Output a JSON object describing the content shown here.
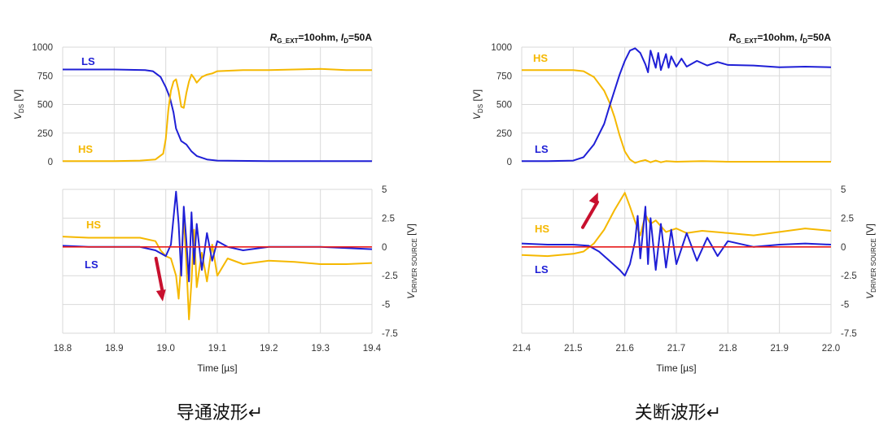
{
  "chart_data": [
    {
      "type": "line",
      "caption": "导通波形↵",
      "condition": {
        "r": "R",
        "r_sub": "G_EXT",
        "r_val": "=10ohm, ",
        "i": "I",
        "i_sub": "D",
        "i_val": "=50A"
      },
      "xlabel": "Time [µs]",
      "x_ticks": [
        "18.8",
        "18.9",
        "19.0",
        "19.1",
        "19.2",
        "19.3",
        "19.4"
      ],
      "xlim": [
        18.8,
        19.4
      ],
      "top": {
        "ylabel_main": "V",
        "ylabel_sub": "DS",
        "ylabel_unit": " [V]",
        "ylim": [
          0,
          1000
        ],
        "y_ticks": [
          "0",
          "250",
          "500",
          "750",
          "1000"
        ],
        "series": [
          {
            "name": "LS",
            "color": "#1f1fd6",
            "x": [
              18.8,
              18.85,
              18.9,
              18.96,
              18.975,
              18.99,
              19.0,
              19.008,
              19.015,
              19.02,
              19.03,
              19.04,
              19.05,
              19.06,
              19.08,
              19.1,
              19.2,
              19.3,
              19.4
            ],
            "y": [
              805,
              805,
              805,
              800,
              790,
              740,
              650,
              560,
              430,
              290,
              180,
              150,
              90,
              50,
              20,
              10,
              5,
              5,
              5
            ]
          },
          {
            "name": "HS",
            "color": "#f5b800",
            "x": [
              18.8,
              18.85,
              18.9,
              18.95,
              18.98,
              18.995,
              19.0,
              19.005,
              19.01,
              19.015,
              19.02,
              19.025,
              19.03,
              19.035,
              19.04,
              19.045,
              19.05,
              19.055,
              19.06,
              19.07,
              19.08,
              19.09,
              19.1,
              19.15,
              19.2,
              19.25,
              19.3,
              19.35,
              19.4
            ],
            "y": [
              5,
              5,
              5,
              10,
              20,
              70,
              200,
              450,
              620,
              700,
              720,
              620,
              480,
              470,
              600,
              700,
              760,
              730,
              690,
              740,
              760,
              770,
              790,
              800,
              800,
              805,
              810,
              800,
              800
            ]
          }
        ]
      },
      "bottom": {
        "ylabel_main": "V",
        "ylabel_sub": "DRIVER SOURCE",
        "ylabel_unit": " [V]",
        "ylim": [
          -7.5,
          5
        ],
        "y_ticks": [
          "5",
          "2.5",
          "0",
          "-2.5",
          "-5",
          "-7.5"
        ],
        "series": [
          {
            "name": "HS",
            "color": "#f5b800",
            "x": [
              18.8,
              18.85,
              18.9,
              18.95,
              18.98,
              18.99,
              19.0,
              19.01,
              19.02,
              19.025,
              19.03,
              19.035,
              19.04,
              19.045,
              19.05,
              19.055,
              19.06,
              19.07,
              19.08,
              19.09,
              19.1,
              19.12,
              19.15,
              19.2,
              19.25,
              19.3,
              19.35,
              19.4
            ],
            "y": [
              0.9,
              0.8,
              0.8,
              0.8,
              0.5,
              -0.3,
              -0.8,
              -1.0,
              -2.5,
              -4.5,
              -1.2,
              2.5,
              -1.5,
              -6.3,
              -3.0,
              1.5,
              -3.5,
              -0.5,
              -3.0,
              0.2,
              -2.5,
              -1.0,
              -1.5,
              -1.2,
              -1.3,
              -1.5,
              -1.5,
              -1.4
            ]
          },
          {
            "name": "LS",
            "color": "#1f1fd6",
            "x": [
              18.8,
              18.85,
              18.9,
              18.95,
              18.98,
              19.0,
              19.01,
              19.02,
              19.025,
              19.03,
              19.035,
              19.04,
              19.045,
              19.05,
              19.055,
              19.06,
              19.07,
              19.08,
              19.09,
              19.1,
              19.12,
              19.15,
              19.2,
              19.3,
              19.4
            ],
            "y": [
              0.1,
              0.0,
              0.0,
              0.0,
              -0.3,
              -0.8,
              0.2,
              4.8,
              2.0,
              -2.5,
              3.5,
              0.5,
              -3.0,
              3.0,
              -1.5,
              2.0,
              -2.0,
              1.2,
              -1.2,
              0.5,
              0.0,
              -0.3,
              0.0,
              0.0,
              -0.2
            ]
          },
          {
            "name": "",
            "color": "#e81b1b",
            "x": [
              18.8,
              19.4
            ],
            "y": [
              0,
              0
            ]
          }
        ]
      },
      "arrow": {
        "direction": "down",
        "x": 19.0,
        "y_from": -1.0,
        "y_to": -4.6
      }
    },
    {
      "type": "line",
      "caption": "关断波形↵",
      "condition": {
        "r": "R",
        "r_sub": "G_EXT",
        "r_val": "=10ohm, ",
        "i": "I",
        "i_sub": "D",
        "i_val": "=50A"
      },
      "xlabel": "Time [µs]",
      "x_ticks": [
        "21.4",
        "21.5",
        "21.6",
        "21.7",
        "21.8",
        "21.9",
        "22.0"
      ],
      "xlim": [
        21.4,
        22.0
      ],
      "top": {
        "ylabel_main": "V",
        "ylabel_sub": "DS",
        "ylabel_unit": " [V]",
        "ylim": [
          0,
          1000
        ],
        "y_ticks": [
          "0",
          "250",
          "500",
          "750",
          "1000"
        ],
        "series": [
          {
            "name": "HS",
            "color": "#f5b800",
            "x": [
              21.4,
              21.45,
              21.5,
              21.52,
              21.54,
              21.56,
              21.57,
              21.58,
              21.59,
              21.6,
              21.61,
              21.62,
              21.63,
              21.64,
              21.65,
              21.66,
              21.67,
              21.68,
              21.7,
              21.75,
              21.8,
              21.9,
              22.0
            ],
            "y": [
              800,
              800,
              800,
              790,
              740,
              620,
              520,
              390,
              230,
              90,
              20,
              -10,
              5,
              15,
              -5,
              10,
              -5,
              5,
              0,
              5,
              0,
              0,
              0
            ]
          },
          {
            "name": "LS",
            "color": "#1f1fd6",
            "x": [
              21.4,
              21.45,
              21.5,
              21.52,
              21.54,
              21.56,
              21.57,
              21.58,
              21.59,
              21.6,
              21.61,
              21.62,
              21.63,
              21.64,
              21.645,
              21.65,
              21.66,
              21.665,
              21.67,
              21.68,
              21.685,
              21.69,
              21.7,
              21.71,
              21.72,
              21.74,
              21.76,
              21.78,
              21.8,
              21.85,
              21.9,
              21.95,
              22.0
            ],
            "y": [
              5,
              5,
              10,
              40,
              150,
              330,
              480,
              620,
              760,
              880,
              970,
              990,
              950,
              850,
              780,
              970,
              820,
              950,
              800,
              940,
              820,
              920,
              830,
              900,
              830,
              880,
              840,
              870,
              845,
              840,
              825,
              830,
              825
            ]
          }
        ]
      },
      "bottom": {
        "ylabel_main": "V",
        "ylabel_sub": "DRIVER SOURCE",
        "ylabel_unit": " [V]",
        "ylim": [
          -7.5,
          5
        ],
        "y_ticks": [
          "5",
          "2.5",
          "0",
          "-2.5",
          "-5",
          "-7.5"
        ],
        "series": [
          {
            "name": "HS",
            "color": "#f5b800",
            "x": [
              21.4,
              21.45,
              21.5,
              21.52,
              21.54,
              21.56,
              21.58,
              21.6,
              21.61,
              21.62,
              21.63,
              21.64,
              21.65,
              21.66,
              21.68,
              21.7,
              21.72,
              21.75,
              21.8,
              21.85,
              21.9,
              21.95,
              22.0
            ],
            "y": [
              -0.7,
              -0.8,
              -0.6,
              -0.4,
              0.3,
              1.5,
              3.2,
              4.7,
              3.5,
              2.2,
              1.0,
              2.8,
              2.0,
              2.3,
              1.3,
              1.6,
              1.2,
              1.4,
              1.2,
              1.0,
              1.3,
              1.6,
              1.4
            ]
          },
          {
            "name": "LS",
            "color": "#1f1fd6",
            "x": [
              21.4,
              21.45,
              21.5,
              21.53,
              21.55,
              21.57,
              21.59,
              21.6,
              21.61,
              21.62,
              21.625,
              21.63,
              21.64,
              21.645,
              21.65,
              21.66,
              21.67,
              21.68,
              21.69,
              21.7,
              21.72,
              21.74,
              21.76,
              21.78,
              21.8,
              21.85,
              21.9,
              21.95,
              22.0
            ],
            "y": [
              0.3,
              0.2,
              0.2,
              0.1,
              -0.4,
              -1.2,
              -2.0,
              -2.5,
              -1.5,
              0.5,
              2.7,
              -1.0,
              3.5,
              -1.5,
              2.5,
              -2.0,
              2.0,
              -1.8,
              1.5,
              -1.5,
              1.2,
              -1.2,
              0.8,
              -0.8,
              0.5,
              0.0,
              0.2,
              0.3,
              0.2
            ]
          },
          {
            "name": "",
            "color": "#e81b1b",
            "x": [
              21.4,
              22.0
            ],
            "y": [
              0,
              0
            ]
          }
        ]
      },
      "arrow": {
        "direction": "up",
        "x": 21.55,
        "y_from": 1.7,
        "y_to": 4.6
      }
    }
  ]
}
